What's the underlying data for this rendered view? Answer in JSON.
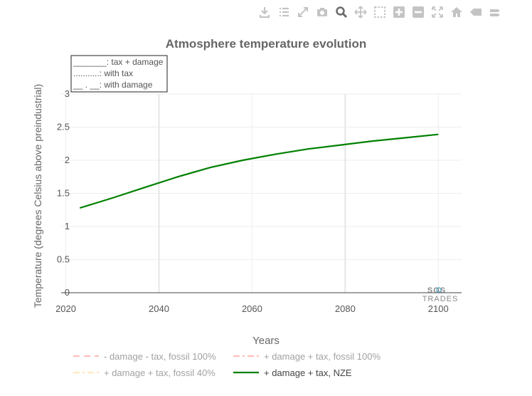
{
  "toolbar": {
    "icons": [
      "download-icon",
      "list-icon",
      "autoscale-icon",
      "camera-icon",
      "zoom-icon",
      "pan-icon",
      "box-select-icon",
      "zoom-in-icon",
      "zoom-out-icon",
      "reset-axes-icon",
      "home-icon",
      "tag-icon",
      "compare-icon"
    ],
    "active_icon": "zoom-icon",
    "icon_color": "#c4c4c4",
    "active_color": "#6b6b6b"
  },
  "annotation_box": {
    "lines": [
      "_______: tax + damage",
      "...........: with tax",
      "__ . __: with damage"
    ]
  },
  "watermark": {
    "line1": "SOS",
    "line2": "TRADES"
  },
  "chart_data": {
    "type": "line",
    "title": "Atmosphere temperature evolution",
    "xlabel": "Years",
    "ylabel": "Temperature (degrees Celsius above preindustrial)",
    "xlim": [
      2019,
      2105
    ],
    "ylim": [
      0,
      3
    ],
    "xticks": [
      2020,
      2040,
      2060,
      2080,
      2100
    ],
    "yticks": [
      0,
      0.5,
      1,
      1.5,
      2,
      2.5,
      3
    ],
    "grid": true,
    "legend_position": "bottom",
    "series": [
      {
        "name": "- damage - tax, fossil 100%",
        "style": "dash",
        "color": "#ff7f7f",
        "visible": false,
        "x": [],
        "y": []
      },
      {
        "name": "+ damage + tax, fossil 100%",
        "style": "dashdot",
        "color": "#ff7f7f",
        "visible": false,
        "x": [],
        "y": []
      },
      {
        "name": "+ damage + tax, fossil 40%",
        "style": "dashdot",
        "color": "#ffd27f",
        "visible": false,
        "x": [],
        "y": []
      },
      {
        "name": "+ damage + tax, NZE",
        "style": "solid",
        "color": "#008000",
        "visible": true,
        "x": [
          2023,
          2030,
          2037,
          2044,
          2051,
          2058,
          2065,
          2072,
          2079,
          2086,
          2093,
          2100
        ],
        "y": [
          1.28,
          1.43,
          1.59,
          1.75,
          1.89,
          2.0,
          2.09,
          2.17,
          2.23,
          2.29,
          2.34,
          2.39
        ]
      }
    ]
  }
}
